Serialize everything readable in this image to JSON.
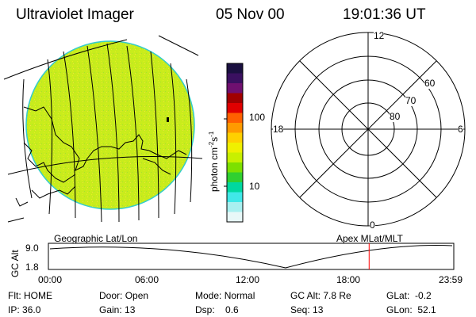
{
  "header": {
    "instrument": "Ultraviolet Imager",
    "date": "05 Nov 00",
    "time": "19:01:36 UT"
  },
  "colorbar": {
    "label": "photon cm",
    "label_exp1": "-2",
    "label_s": "s",
    "label_exp2": "-1",
    "tick_high": "100",
    "tick_low": "10",
    "colors": [
      "#1a1040",
      "#3a1060",
      "#701070",
      "#a00000",
      "#e00000",
      "#ff6000",
      "#ff9a00",
      "#ffd000",
      "#f0f000",
      "#c8f000",
      "#7de000",
      "#30d030",
      "#00d8a0",
      "#40e8e8",
      "#a8f0f0",
      "#e8f8f8"
    ]
  },
  "polar_plot": {
    "labels": {
      "top": "12",
      "bottom": "0",
      "left": "18",
      "right": "6",
      "ring60": "60",
      "ring70": "70",
      "ring80": "80"
    }
  },
  "timeline": {
    "left_title": "Geographic Lat/Lon",
    "right_title": "Apex MLat/MLT",
    "ylabel": "GC Alt",
    "y_top": "9.0",
    "y_bottom": "1.8",
    "xticks": [
      "00:00",
      "06:00",
      "12:00",
      "18:00",
      "23:59"
    ],
    "current_time_hours": 19.03
  },
  "info": {
    "flt_label": "Flt:",
    "flt": "HOME",
    "ip_label": "IP:",
    "ip": "36.0",
    "door_label": "Door:",
    "door": "Open",
    "gain_label": "Gain:",
    "gain": "13",
    "mode_label": "Mode:",
    "mode": "Normal",
    "dsp_label": "Dsp:",
    "dsp": "0.6",
    "gcalt_label": "GC Alt:",
    "gcalt": "7.8 Re",
    "seq_label": "Seq:",
    "seq": "13",
    "glat_label": "GLat:",
    "glat": "-0.2",
    "glon_label": "GLon:",
    "glon": "52.1"
  },
  "colors": {
    "earth_fill": "#c8ec1c",
    "earth_limb": "#33cccc",
    "marker": "#ff0000"
  }
}
